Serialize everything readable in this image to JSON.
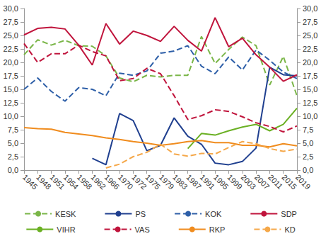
{
  "chart_data": {
    "type": "line",
    "categories": [
      "1945",
      "1948",
      "1951",
      "1954",
      "1958",
      "1962",
      "1966",
      "1970",
      "1972",
      "1975",
      "1979",
      "1983",
      "1987",
      "1991",
      "1995",
      "1999",
      "2003",
      "2007",
      "2011",
      "2015",
      "2019"
    ],
    "ylim": [
      0,
      30
    ],
    "yticks": [
      {
        "value": 0,
        "label": "0,0"
      },
      {
        "value": 2.5,
        "label": "2,5"
      },
      {
        "value": 5,
        "label": "5,0"
      },
      {
        "value": 7.5,
        "label": "7,5"
      },
      {
        "value": 10,
        "label": "10,0"
      },
      {
        "value": 12.5,
        "label": "12,5"
      },
      {
        "value": 15,
        "label": "15,0"
      },
      {
        "value": 17.5,
        "label": "17,5"
      },
      {
        "value": 20,
        "label": "20,0"
      },
      {
        "value": 22.5,
        "label": "22,5"
      },
      {
        "value": 25,
        "label": "25,0"
      },
      {
        "value": 27.5,
        "label": "27,5"
      },
      {
        "value": 30,
        "label": "30,0"
      }
    ],
    "y2lim": [
      0,
      30
    ],
    "y2ticks": [
      {
        "value": 0,
        "label": "0,0"
      },
      {
        "value": 2.5,
        "label": "2,5"
      },
      {
        "value": 5,
        "label": "5,0"
      },
      {
        "value": 7.5,
        "label": "7,5"
      },
      {
        "value": 10,
        "label": "10,0"
      },
      {
        "value": 12.5,
        "label": "12,5"
      },
      {
        "value": 15,
        "label": "15,0"
      },
      {
        "value": 17.5,
        "label": "17,5"
      },
      {
        "value": 20,
        "label": "20,0"
      },
      {
        "value": 22.5,
        "label": "22,5"
      },
      {
        "value": 25,
        "label": "25,0"
      },
      {
        "value": 27.5,
        "label": "27,5"
      },
      {
        "value": 30,
        "label": "30,0"
      }
    ],
    "grid": false,
    "legend": "bottom",
    "series": [
      {
        "name": "KESK",
        "color": "#7ab648",
        "line_style": "dashed",
        "values": [
          21.4,
          24.2,
          23.2,
          24.1,
          23.1,
          23.0,
          21.2,
          17.1,
          16.4,
          17.6,
          17.3,
          17.6,
          17.6,
          24.8,
          19.8,
          22.4,
          24.7,
          23.1,
          15.8,
          21.1,
          13.8
        ]
      },
      {
        "name": "PS",
        "color": "#1f3f8f",
        "line_style": "solid",
        "values": [
          null,
          null,
          null,
          null,
          null,
          2.2,
          1.0,
          10.5,
          9.2,
          3.6,
          4.6,
          9.7,
          6.3,
          4.8,
          1.3,
          1.0,
          1.6,
          4.1,
          19.1,
          17.7,
          17.5
        ]
      },
      {
        "name": "KOK",
        "color": "#2e5fa8",
        "line_style": "dashed",
        "values": [
          15.0,
          17.1,
          14.6,
          12.8,
          15.3,
          15.0,
          13.8,
          18.0,
          17.6,
          18.4,
          21.7,
          22.1,
          23.1,
          19.3,
          17.9,
          21.0,
          18.6,
          22.3,
          20.4,
          18.2,
          17.0
        ]
      },
      {
        "name": "SDP",
        "color": "#c0143c",
        "line_style": "solid",
        "values": [
          25.1,
          26.3,
          26.5,
          26.2,
          23.2,
          19.5,
          27.2,
          23.4,
          25.8,
          25.0,
          23.9,
          26.7,
          24.1,
          22.1,
          28.3,
          22.9,
          24.5,
          21.4,
          19.1,
          16.5,
          17.7
        ]
      },
      {
        "name": "VIHR",
        "color": "#6ab023",
        "line_style": "solid",
        "values": [
          null,
          null,
          null,
          null,
          null,
          null,
          null,
          null,
          null,
          null,
          null,
          null,
          4.0,
          6.8,
          6.5,
          7.3,
          8.0,
          8.5,
          7.3,
          8.5,
          11.5
        ]
      },
      {
        "name": "VAS",
        "color": "#c0143c",
        "line_style": "dashed",
        "values": [
          23.5,
          20.0,
          21.6,
          21.6,
          23.2,
          22.0,
          21.2,
          16.6,
          17.0,
          18.9,
          17.9,
          13.8,
          9.4,
          10.1,
          11.2,
          10.9,
          9.9,
          8.8,
          8.1,
          7.1,
          8.2
        ]
      },
      {
        "name": "RKP",
        "color": "#f08c1e",
        "line_style": "solid",
        "values": [
          7.9,
          7.7,
          7.6,
          7.0,
          6.7,
          6.4,
          6.0,
          5.7,
          5.3,
          5.0,
          4.6,
          4.9,
          5.3,
          5.5,
          5.1,
          5.1,
          4.6,
          4.6,
          4.3,
          4.9,
          4.5
        ]
      },
      {
        "name": "KD",
        "color": "#f5a84a",
        "line_style": "dashed",
        "values": [
          null,
          null,
          null,
          null,
          null,
          null,
          0.4,
          1.1,
          2.5,
          3.3,
          4.8,
          3.0,
          2.6,
          3.1,
          3.0,
          4.2,
          5.3,
          4.9,
          4.0,
          3.5,
          3.9
        ]
      }
    ]
  }
}
